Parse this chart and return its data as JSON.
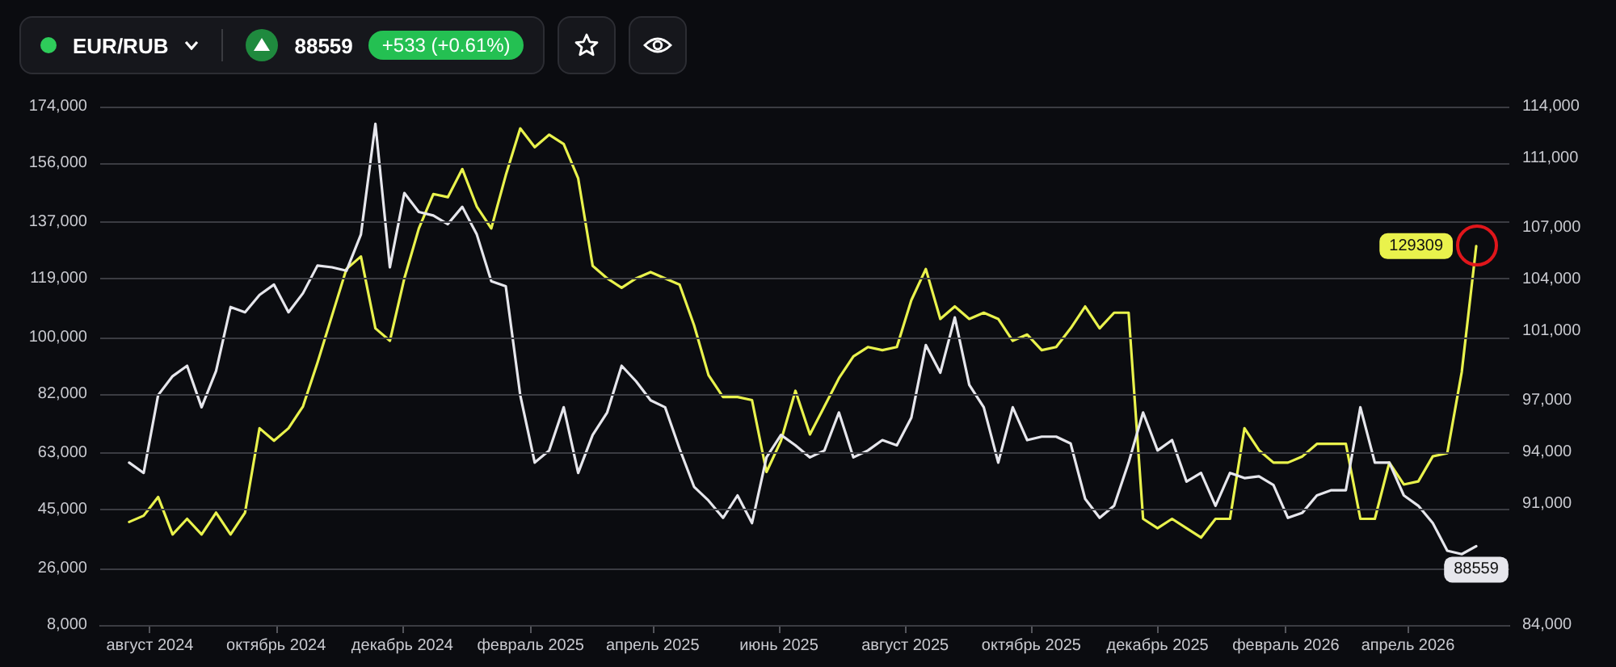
{
  "chart_data": {
    "type": "line",
    "title": "EUR/RUB",
    "annotations": [
      "88559",
      "+533 (+0.61%)"
    ],
    "x": [
      "2024-07-22",
      "2024-07-29",
      "2024-08-05",
      "2024-08-12",
      "2024-08-19",
      "2024-08-26",
      "2024-09-02",
      "2024-09-09",
      "2024-09-16",
      "2024-09-23",
      "2024-09-30",
      "2024-10-07",
      "2024-10-14",
      "2024-10-21",
      "2024-10-28",
      "2024-11-04",
      "2024-11-11",
      "2024-11-18",
      "2024-11-25",
      "2024-12-02",
      "2024-12-09",
      "2024-12-16",
      "2024-12-23",
      "2024-12-30",
      "2025-01-06",
      "2025-01-13",
      "2025-01-20",
      "2025-01-27",
      "2025-02-03",
      "2025-02-10",
      "2025-02-17",
      "2025-02-24",
      "2025-03-03",
      "2025-03-10",
      "2025-03-17",
      "2025-03-24",
      "2025-03-31",
      "2025-04-07",
      "2025-04-14",
      "2025-04-21",
      "2025-04-28",
      "2025-05-05",
      "2025-05-12",
      "2025-05-19",
      "2025-05-26",
      "2025-06-02",
      "2025-06-09",
      "2025-06-16",
      "2025-06-23",
      "2025-06-30",
      "2025-07-07",
      "2025-07-14",
      "2025-07-21",
      "2025-07-28",
      "2025-08-04",
      "2025-08-11",
      "2025-08-18",
      "2025-08-25",
      "2025-09-01",
      "2025-09-08",
      "2025-09-15",
      "2025-09-22",
      "2025-09-29",
      "2025-10-06",
      "2025-10-13",
      "2025-10-20",
      "2025-10-27",
      "2025-11-03",
      "2025-11-10",
      "2025-11-17",
      "2025-11-24",
      "2025-12-01",
      "2025-12-08",
      "2025-12-15",
      "2025-12-22",
      "2025-12-29",
      "2026-01-05",
      "2026-01-12",
      "2026-01-19",
      "2026-01-26",
      "2026-02-02",
      "2026-02-09",
      "2026-02-16",
      "2026-02-23",
      "2026-03-02",
      "2026-03-09",
      "2026-03-16",
      "2026-03-23",
      "2026-03-30",
      "2026-04-06",
      "2026-04-13",
      "2026-04-20",
      "2026-04-27",
      "2026-05-04"
    ],
    "series": [
      {
        "color": "#e9f24c",
        "values": [
          41000,
          43000,
          49000,
          37000,
          42000,
          37000,
          44000,
          37000,
          44000,
          71000,
          67000,
          71000,
          78000,
          92000,
          107000,
          122000,
          126000,
          103000,
          99000,
          119000,
          135000,
          146000,
          145000,
          154000,
          142000,
          135000,
          152000,
          167000,
          161000,
          165000,
          162000,
          151000,
          123000,
          119000,
          116000,
          119000,
          121000,
          119000,
          117000,
          104000,
          88000,
          81000,
          81000,
          80000,
          57000,
          67000,
          83000,
          69000,
          78000,
          87000,
          94000,
          97000,
          96000,
          97000,
          112000,
          122000,
          106000,
          110000,
          106000,
          108000,
          106000,
          99000,
          101000,
          96000,
          97000,
          103000,
          110000,
          103000,
          108000,
          108000,
          42000,
          39000,
          42000,
          39000,
          36000,
          42000,
          42000,
          71000,
          64000,
          60000,
          60000,
          62000,
          66000,
          66000,
          66000,
          42000,
          42000,
          60000,
          53000,
          54000,
          62000,
          63000,
          89000,
          129309
        ],
        "value_labels": [
          null,
          null,
          null,
          null,
          null,
          null,
          null,
          null,
          null,
          null,
          null,
          null,
          null,
          null,
          null,
          null,
          null,
          null,
          null,
          null,
          null,
          null,
          null,
          null,
          null,
          null,
          null,
          null,
          null,
          null,
          null,
          null,
          null,
          null,
          null,
          null,
          null,
          null,
          null,
          null,
          null,
          null,
          null,
          null,
          null,
          null,
          null,
          null,
          null,
          null,
          null,
          null,
          null,
          null,
          null,
          null,
          null,
          null,
          null,
          null,
          null,
          null,
          null,
          null,
          null,
          null,
          null,
          null,
          null,
          null,
          null,
          null,
          null,
          null,
          null,
          null,
          null,
          null,
          null,
          null,
          null,
          null,
          null,
          null,
          null,
          null,
          null,
          null,
          null,
          null,
          null,
          null,
          null,
          "129309"
        ]
      },
      {
        "color": "#e6e6ec",
        "axis": "y2",
        "values": [
          93400,
          92800,
          97300,
          98400,
          99000,
          96600,
          98700,
          102400,
          102100,
          103100,
          103700,
          102100,
          103200,
          104800,
          104700,
          104500,
          106600,
          113000,
          104700,
          109000,
          107900,
          107700,
          107200,
          108200,
          106600,
          103900,
          103600,
          97300,
          93400,
          94100,
          96600,
          92800,
          95000,
          96300,
          99000,
          98100,
          97000,
          96600,
          94200,
          92000,
          91200,
          90200,
          91500,
          89900,
          93700,
          95000,
          94400,
          93700,
          94100,
          96300,
          93700,
          94100,
          94700,
          94400,
          96000,
          100200,
          98600,
          101800,
          97900,
          96600,
          93400,
          96600,
          94700,
          94900,
          94900,
          94500,
          91300,
          90200,
          90900,
          93400,
          96300,
          94100,
          94700,
          92300,
          92800,
          90900,
          92800,
          92500,
          92600,
          92100,
          90200,
          90500,
          91500,
          91800,
          91800,
          96600,
          93400,
          93400,
          91500,
          90900,
          89900,
          88300,
          88100,
          88559
        ],
        "value_labels": [
          null,
          null,
          null,
          null,
          null,
          null,
          null,
          null,
          null,
          null,
          null,
          null,
          null,
          null,
          null,
          null,
          null,
          null,
          null,
          null,
          null,
          null,
          null,
          null,
          null,
          null,
          null,
          null,
          null,
          null,
          null,
          null,
          null,
          null,
          null,
          null,
          null,
          null,
          null,
          null,
          null,
          null,
          null,
          null,
          null,
          null,
          null,
          null,
          null,
          null,
          null,
          null,
          null,
          null,
          null,
          null,
          null,
          null,
          null,
          null,
          null,
          null,
          null,
          null,
          null,
          null,
          null,
          null,
          null,
          null,
          null,
          null,
          null,
          null,
          null,
          null,
          null,
          null,
          null,
          null,
          null,
          null,
          null,
          null,
          null,
          null,
          null,
          null,
          null,
          null,
          null,
          null,
          null,
          "88559"
        ]
      }
    ],
    "xlim": [
      "2024-07-08",
      "2026-05-20"
    ],
    "xticks": [
      {
        "value": "2024-08-01",
        "label": "август 2024"
      },
      {
        "value": "2024-10-01",
        "label": "октябрь 2024"
      },
      {
        "value": "2024-12-01",
        "label": "декабрь 2024"
      },
      {
        "value": "2025-02-01",
        "label": "февраль 2025"
      },
      {
        "value": "2025-04-01",
        "label": "апрель 2025"
      },
      {
        "value": "2025-06-01",
        "label": "июнь 2025"
      },
      {
        "value": "2025-08-01",
        "label": "август 2025"
      },
      {
        "value": "2025-10-01",
        "label": "октябрь 2025"
      },
      {
        "value": "2025-12-01",
        "label": "декабрь 2025"
      },
      {
        "value": "2026-02-01",
        "label": "февраль 2026"
      },
      {
        "value": "2026-04-01",
        "label": "апрель 2026"
      }
    ],
    "ylim": [
      8000,
      174000
    ],
    "yticks": [
      {
        "value": 8000,
        "label": "8,000"
      },
      {
        "value": 26000,
        "label": "26,000"
      },
      {
        "value": 45000,
        "label": "45,000"
      },
      {
        "value": 63000,
        "label": "63,000"
      },
      {
        "value": 82000,
        "label": "82,000"
      },
      {
        "value": 100000,
        "label": "100,000"
      },
      {
        "value": 119000,
        "label": "119,000"
      },
      {
        "value": 137000,
        "label": "137,000"
      },
      {
        "value": 156000,
        "label": "156,000"
      },
      {
        "value": 174000,
        "label": "174,000"
      }
    ],
    "y2lim": [
      84000,
      114000
    ],
    "y2ticks": [
      {
        "value": 84000,
        "label": "84,000"
      },
      {
        "value": 91000,
        "label": "91,000"
      },
      {
        "value": 94000,
        "label": "94,000"
      },
      {
        "value": 97000,
        "label": "97,000"
      },
      {
        "value": 101000,
        "label": "101,000"
      },
      {
        "value": 104000,
        "label": "104,000"
      },
      {
        "value": 107000,
        "label": "107,000"
      },
      {
        "value": 111000,
        "label": "111,000"
      },
      {
        "value": 114000,
        "label": "114,000"
      }
    ],
    "grid": "y",
    "line_style": "solid"
  }
}
